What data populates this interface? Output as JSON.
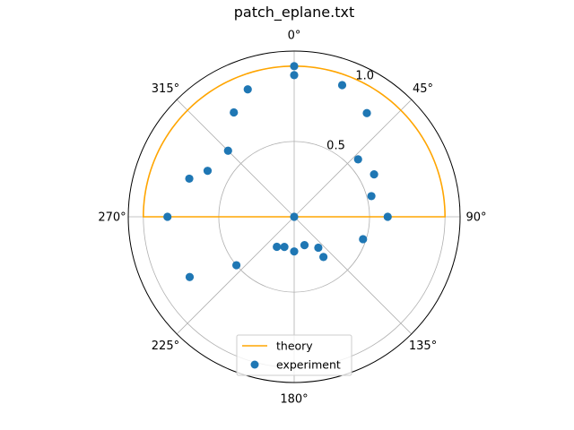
{
  "chart_data": {
    "type": "polar",
    "title": "patch_eplane.txt",
    "theta_zero": "top",
    "theta_direction": "clockwise",
    "theta_ticks": [
      "0°",
      "45°",
      "90°",
      "135°",
      "180°",
      "225°",
      "270°",
      "315°"
    ],
    "r_ticks": [
      "0.5",
      "1.0"
    ],
    "r_tick_values": [
      0.5,
      1.0
    ],
    "rlim": [
      0,
      1.1
    ],
    "grid": true,
    "legend": {
      "placement": "bottom-center",
      "entries": [
        "theory",
        "experiment"
      ]
    },
    "colors": {
      "theory": "#ffa500",
      "experiment": "#1f77b4"
    },
    "series": [
      {
        "name": "theory",
        "style": "line",
        "description_points": [
          {
            "theta": 0,
            "r": 1.0
          },
          {
            "theta": 90,
            "r": 1.0
          },
          {
            "theta": 180,
            "r": 0.0
          },
          {
            "theta": 270,
            "r": 1.0
          }
        ]
      },
      {
        "name": "experiment",
        "style": "scatter",
        "points": [
          {
            "theta": 0,
            "r": 1.0
          },
          {
            "theta": 0,
            "r": 0.94
          },
          {
            "theta": 20,
            "r": 0.93
          },
          {
            "theta": 35,
            "r": 0.84
          },
          {
            "theta": 48,
            "r": 0.57
          },
          {
            "theta": 62,
            "r": 0.6
          },
          {
            "theta": 75,
            "r": 0.53
          },
          {
            "theta": 90,
            "r": 0.62
          },
          {
            "theta": 108,
            "r": 0.48
          },
          {
            "theta": 142,
            "r": 0.26
          },
          {
            "theta": 144,
            "r": 0.33
          },
          {
            "theta": 160,
            "r": 0.2
          },
          {
            "theta": 180,
            "r": 0.23
          },
          {
            "theta": 198,
            "r": 0.21
          },
          {
            "theta": 210,
            "r": 0.23
          },
          {
            "theta": 230,
            "r": 0.5
          },
          {
            "theta": 240,
            "r": 0.8
          },
          {
            "theta": 270,
            "r": 0.84
          },
          {
            "theta": 290,
            "r": 0.74
          },
          {
            "theta": 298,
            "r": 0.65
          },
          {
            "theta": 315,
            "r": 0.62
          },
          {
            "theta": 330,
            "r": 0.8
          },
          {
            "theta": 340,
            "r": 0.9
          },
          {
            "theta": 0,
            "r": 0.0
          }
        ]
      }
    ]
  }
}
